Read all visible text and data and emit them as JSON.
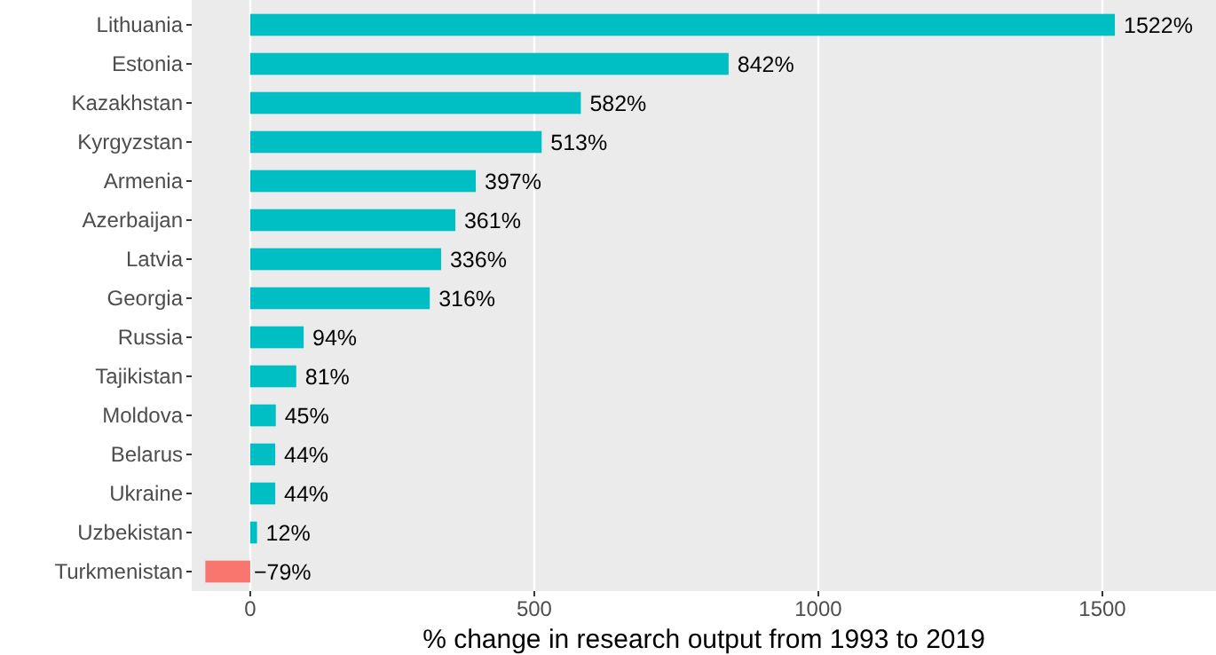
{
  "chart_data": {
    "type": "bar",
    "orientation": "horizontal",
    "xlabel": "% change in research output from 1993 to 2019",
    "categories": [
      "Lithuania",
      "Estonia",
      "Kazakhstan",
      "Kyrgyzstan",
      "Armenia",
      "Azerbaijan",
      "Latvia",
      "Georgia",
      "Russia",
      "Tajikistan",
      "Moldova",
      "Belarus",
      "Ukraine",
      "Uzbekistan",
      "Turkmenistan"
    ],
    "values": [
      1522,
      842,
      582,
      513,
      397,
      361,
      336,
      316,
      94,
      81,
      45,
      44,
      44,
      12,
      -79
    ],
    "colors": [
      "#00bfc4",
      "#00bfc4",
      "#00bfc4",
      "#00bfc4",
      "#00bfc4",
      "#00bfc4",
      "#00bfc4",
      "#00bfc4",
      "#00bfc4",
      "#00bfc4",
      "#00bfc4",
      "#00bfc4",
      "#00bfc4",
      "#00bfc4",
      "#f8766d"
    ],
    "value_labels": [
      "1522%",
      "842%",
      "582%",
      "513%",
      "397%",
      "361%",
      "336%",
      "316%",
      "94%",
      "81%",
      "45%",
      "44%",
      "44%",
      "12%",
      "−79%"
    ],
    "xlim": [
      -103,
      1700
    ],
    "xticks": [
      0,
      500,
      1000,
      1500
    ],
    "grid": "x"
  }
}
